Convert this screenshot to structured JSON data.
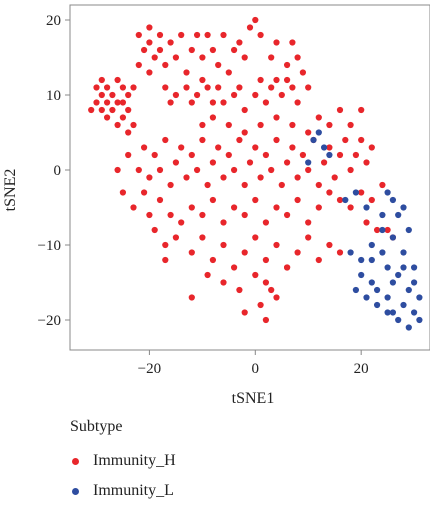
{
  "chart_data": {
    "type": "scatter",
    "xlabel": "tSNE1",
    "ylabel": "tSNE2",
    "xlim": [
      -35,
      33
    ],
    "ylim": [
      -24,
      22
    ],
    "xticks": [
      -20,
      0,
      20
    ],
    "yticks": [
      20,
      10,
      0,
      -10,
      -20
    ],
    "xtick_labels": [
      "−20",
      "0",
      "20"
    ],
    "ytick_labels": [
      "20",
      "10",
      "0",
      "−10",
      "−20"
    ],
    "grid": false,
    "legend": {
      "title": "Subtype",
      "placement": "bottom-left"
    },
    "series": [
      {
        "name": "Immunity_H",
        "color": "#e8262b",
        "points": [
          [
            -31,
            8
          ],
          [
            -30,
            11
          ],
          [
            -30,
            9
          ],
          [
            -29,
            12
          ],
          [
            -29,
            10
          ],
          [
            -29,
            8
          ],
          [
            -28,
            7
          ],
          [
            -28,
            11
          ],
          [
            -28,
            9
          ],
          [
            -27,
            10
          ],
          [
            -27,
            8
          ],
          [
            -26,
            6
          ],
          [
            -26,
            9
          ],
          [
            -26,
            12
          ],
          [
            -25,
            11
          ],
          [
            -25,
            7
          ],
          [
            -25,
            9
          ],
          [
            -24,
            10
          ],
          [
            -24,
            8
          ],
          [
            -24,
            5
          ],
          [
            -23,
            11
          ],
          [
            -23,
            6
          ],
          [
            -22,
            18
          ],
          [
            -21,
            16
          ],
          [
            -20,
            19
          ],
          [
            -20,
            17
          ],
          [
            -19,
            15
          ],
          [
            -18,
            18
          ],
          [
            -18,
            16
          ],
          [
            -17,
            14
          ],
          [
            -16,
            17
          ],
          [
            -15,
            15
          ],
          [
            -14,
            18
          ],
          [
            -13,
            13
          ],
          [
            -12,
            16
          ],
          [
            -11,
            18
          ],
          [
            -10,
            15
          ],
          [
            -10,
            12
          ],
          [
            -9,
            18
          ],
          [
            -8,
            16
          ],
          [
            -7,
            14
          ],
          [
            -6,
            18
          ],
          [
            -5,
            13
          ],
          [
            -4,
            16
          ],
          [
            -3,
            17
          ],
          [
            -2,
            15
          ],
          [
            -1,
            19
          ],
          [
            0,
            20
          ],
          [
            1,
            18
          ],
          [
            -22,
            14
          ],
          [
            -20,
            13
          ],
          [
            -17,
            11
          ],
          [
            -16,
            9
          ],
          [
            -15,
            10
          ],
          [
            -13,
            11
          ],
          [
            -12,
            9
          ],
          [
            -11,
            10
          ],
          [
            -9,
            11
          ],
          [
            -8,
            9
          ],
          [
            -7,
            11
          ],
          [
            -6,
            9
          ],
          [
            -4,
            10
          ],
          [
            -3,
            11
          ],
          [
            -2,
            8
          ],
          [
            0,
            10
          ],
          [
            1,
            12
          ],
          [
            2,
            9
          ],
          [
            3,
            11
          ],
          [
            4,
            12
          ],
          [
            5,
            10
          ],
          [
            6,
            12
          ],
          [
            7,
            11
          ],
          [
            8,
            9
          ],
          [
            9,
            13
          ],
          [
            10,
            11
          ],
          [
            6,
            14
          ],
          [
            8,
            15
          ],
          [
            3,
            15
          ],
          [
            4,
            17
          ],
          [
            7,
            17
          ],
          [
            -24,
            2
          ],
          [
            -22,
            0
          ],
          [
            -21,
            3
          ],
          [
            -20,
            -1
          ],
          [
            -19,
            2
          ],
          [
            -18,
            0
          ],
          [
            -17,
            4
          ],
          [
            -16,
            -2
          ],
          [
            -15,
            1
          ],
          [
            -14,
            3
          ],
          [
            -13,
            -1
          ],
          [
            -12,
            2
          ],
          [
            -11,
            0
          ],
          [
            -10,
            4
          ],
          [
            -9,
            -2
          ],
          [
            -8,
            1
          ],
          [
            -7,
            3
          ],
          [
            -6,
            -1
          ],
          [
            -5,
            2
          ],
          [
            -4,
            0
          ],
          [
            -3,
            4
          ],
          [
            -2,
            -2
          ],
          [
            -1,
            1
          ],
          [
            0,
            3
          ],
          [
            1,
            -1
          ],
          [
            2,
            2
          ],
          [
            3,
            0
          ],
          [
            4,
            4
          ],
          [
            5,
            -2
          ],
          [
            6,
            1
          ],
          [
            7,
            3
          ],
          [
            8,
            -1
          ],
          [
            9,
            2
          ],
          [
            10,
            0
          ],
          [
            11,
            4
          ],
          [
            12,
            -2
          ],
          [
            13,
            1
          ],
          [
            14,
            3
          ],
          [
            15,
            -1
          ],
          [
            16,
            2
          ],
          [
            17,
            4
          ],
          [
            18,
            0
          ],
          [
            19,
            2
          ],
          [
            20,
            4
          ],
          [
            21,
            1
          ],
          [
            22,
            3
          ],
          [
            14,
            6
          ],
          [
            16,
            8
          ],
          [
            18,
            6
          ],
          [
            20,
            8
          ],
          [
            12,
            7
          ],
          [
            10,
            5
          ],
          [
            -10,
            6
          ],
          [
            -8,
            7
          ],
          [
            -5,
            6
          ],
          [
            -2,
            5
          ],
          [
            1,
            6
          ],
          [
            4,
            7
          ],
          [
            7,
            6
          ],
          [
            -26,
            0
          ],
          [
            -25,
            -3
          ],
          [
            -23,
            -5
          ],
          [
            -21,
            -3
          ],
          [
            -20,
            -6
          ],
          [
            -18,
            -4
          ],
          [
            -16,
            -6
          ],
          [
            -14,
            -7
          ],
          [
            -12,
            -5
          ],
          [
            -10,
            -6
          ],
          [
            -8,
            -4
          ],
          [
            -6,
            -7
          ],
          [
            -4,
            -5
          ],
          [
            -2,
            -6
          ],
          [
            0,
            -4
          ],
          [
            2,
            -7
          ],
          [
            4,
            -5
          ],
          [
            6,
            -6
          ],
          [
            8,
            -4
          ],
          [
            10,
            -7
          ],
          [
            12,
            -5
          ],
          [
            14,
            -3
          ],
          [
            16,
            -4
          ],
          [
            18,
            -5
          ],
          [
            20,
            -3
          ],
          [
            22,
            -4
          ],
          [
            24,
            -2
          ],
          [
            21,
            -7
          ],
          [
            23,
            -8
          ],
          [
            25,
            -8
          ],
          [
            26,
            -9
          ],
          [
            -19,
            -8
          ],
          [
            -17,
            -10
          ],
          [
            -15,
            -9
          ],
          [
            -12,
            -11
          ],
          [
            -10,
            -9
          ],
          [
            -8,
            -12
          ],
          [
            -6,
            -10
          ],
          [
            -4,
            -13
          ],
          [
            -2,
            -11
          ],
          [
            0,
            -9
          ],
          [
            2,
            -12
          ],
          [
            4,
            -10
          ],
          [
            6,
            -13
          ],
          [
            8,
            -11
          ],
          [
            10,
            -9
          ],
          [
            12,
            -12
          ],
          [
            14,
            -10
          ],
          [
            16,
            -11
          ],
          [
            -9,
            -14
          ],
          [
            -6,
            -15
          ],
          [
            -3,
            -16
          ],
          [
            0,
            -14
          ],
          [
            2,
            -15
          ],
          [
            4,
            -17
          ],
          [
            6,
            -13
          ],
          [
            -12,
            -17
          ],
          [
            -2,
            -19
          ],
          [
            1,
            -18
          ],
          [
            2,
            -20
          ],
          [
            3,
            -16
          ],
          [
            -17,
            -12
          ]
        ]
      },
      {
        "name": "Immunity_L",
        "color": "#2e4da0",
        "points": [
          [
            11,
            4
          ],
          [
            12,
            5
          ],
          [
            13,
            3
          ],
          [
            14,
            2
          ],
          [
            10,
            1
          ],
          [
            17,
            -4
          ],
          [
            19,
            -3
          ],
          [
            21,
            -5
          ],
          [
            24,
            -6
          ],
          [
            25,
            -3
          ],
          [
            26,
            -4
          ],
          [
            27,
            -6
          ],
          [
            28,
            -5
          ],
          [
            29,
            -8
          ],
          [
            28,
            -11
          ],
          [
            30,
            -13
          ],
          [
            27,
            -14
          ],
          [
            25,
            -13
          ],
          [
            24,
            -11
          ],
          [
            22,
            -12
          ],
          [
            20,
            -14
          ],
          [
            19,
            -16
          ],
          [
            21,
            -17
          ],
          [
            23,
            -16
          ],
          [
            25,
            -17
          ],
          [
            26,
            -19
          ],
          [
            28,
            -18
          ],
          [
            29,
            -16
          ],
          [
            30,
            -19
          ],
          [
            31,
            -20
          ],
          [
            29,
            -21
          ],
          [
            27,
            -20
          ],
          [
            25,
            -19
          ],
          [
            23,
            -18
          ],
          [
            22,
            -10
          ],
          [
            26,
            -9
          ],
          [
            24,
            -8
          ],
          [
            30,
            -15
          ],
          [
            31,
            -17
          ],
          [
            28,
            -13
          ],
          [
            26,
            -15
          ],
          [
            20,
            -12
          ],
          [
            18,
            -11
          ],
          [
            22,
            -15
          ]
        ]
      }
    ]
  }
}
